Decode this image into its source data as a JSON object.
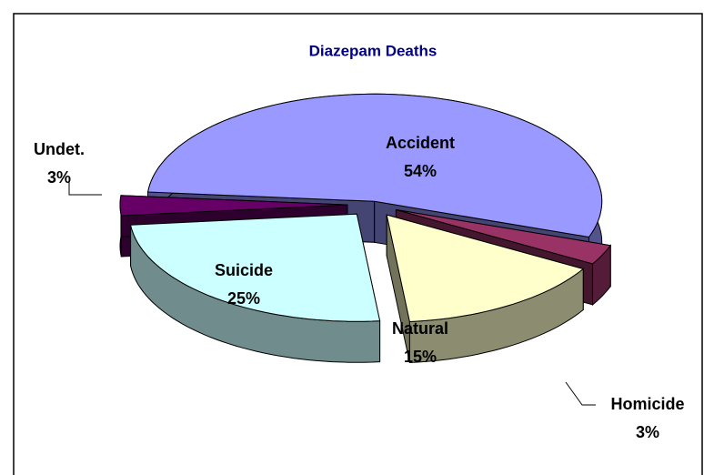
{
  "chart_data": {
    "type": "pie3d",
    "title": "Diazepam Deaths",
    "categories": [
      "Accident",
      "Homicide",
      "Natural",
      "Suicide",
      "Undet."
    ],
    "values": [
      54,
      3,
      15,
      25,
      3
    ],
    "value_labels": [
      "54%",
      "3%",
      "15%",
      "25%",
      "3%"
    ],
    "colors": [
      "#9999ff",
      "#993366",
      "#ffffcc",
      "#ccffff",
      "#660066"
    ]
  }
}
